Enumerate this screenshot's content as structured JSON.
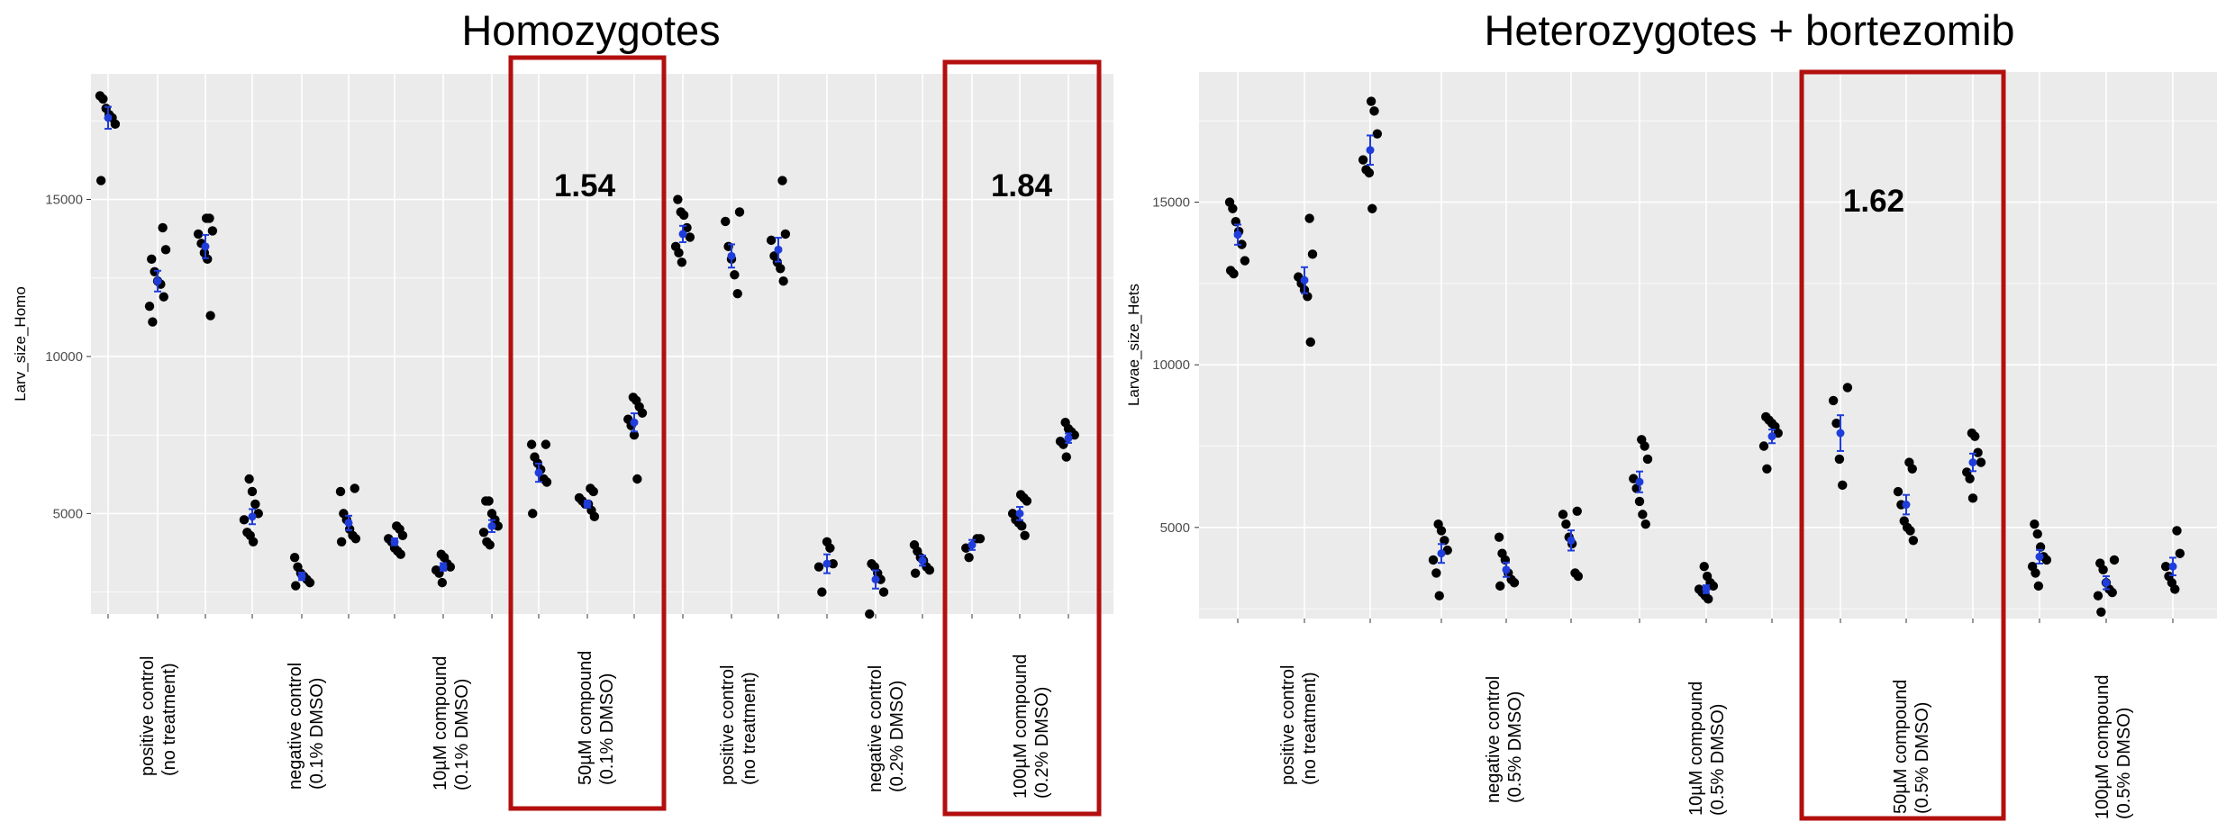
{
  "chart_data": [
    {
      "type": "scatter",
      "title": "Homozygotes",
      "ylabel": "Larv_size_Homo",
      "xlabel": "",
      "ylim": [
        1800,
        19000
      ],
      "yticks": [
        5000,
        10000,
        15000
      ],
      "grid": true,
      "legend": "none",
      "point_color": "#000000",
      "mean_color": "#1f3ddb",
      "highlight_color": "#b30f0f",
      "category_labels": [
        {
          "line1": "positive control",
          "line2": "(no treatment)"
        },
        {
          "line1": "negative control",
          "line2": "(0.1% DMSO)"
        },
        {
          "line1": "10µM compound",
          "line2": "(0.1% DMSO)"
        },
        {
          "line1": "50µM compound",
          "line2": "(0.1% DMSO)"
        },
        {
          "line1": "positive control",
          "line2": "(no treatment)"
        },
        {
          "line1": "negative control",
          "line2": "(0.2% DMSO)"
        },
        {
          "line1": "100µM compound",
          "line2": "(0.2% DMSO)"
        }
      ],
      "annotations": [
        "1.54",
        "1.84"
      ],
      "series": [
        {
          "values": [
            18300,
            18200,
            17900,
            17700,
            17600,
            17400,
            15600
          ],
          "mean": 17600,
          "se": 350
        },
        {
          "values": [
            14100,
            13400,
            13100,
            12700,
            12400,
            12300,
            11900,
            11600,
            11100
          ],
          "mean": 12400,
          "se": 330
        },
        {
          "values": [
            14400,
            14400,
            14000,
            13900,
            13600,
            13300,
            13100,
            11300
          ],
          "mean": 13500,
          "se": 370
        },
        {
          "values": [
            6100,
            5700,
            5300,
            5000,
            4800,
            4400,
            4300,
            4100
          ],
          "mean": 4900,
          "se": 240
        },
        {
          "values": [
            3600,
            3300,
            3100,
            3000,
            2900,
            2800,
            2700
          ],
          "mean": 3000,
          "se": 120
        },
        {
          "values": [
            5800,
            5700,
            5000,
            4800,
            4500,
            4300,
            4200,
            4100
          ],
          "mean": 4700,
          "se": 230
        },
        {
          "values": [
            4600,
            4500,
            4300,
            4200,
            4100,
            3900,
            3800,
            3700
          ],
          "mean": 4100,
          "se": 110
        },
        {
          "values": [
            3700,
            3600,
            3400,
            3300,
            3200,
            3100,
            2800
          ],
          "mean": 3300,
          "se": 120
        },
        {
          "values": [
            5400,
            5400,
            5000,
            4800,
            4600,
            4400,
            4100,
            4000
          ],
          "mean": 4600,
          "se": 190
        },
        {
          "values": [
            7200,
            7200,
            6800,
            6600,
            6400,
            6100,
            6000,
            5000
          ],
          "mean": 6300,
          "se": 290
        },
        {
          "values": [
            5800,
            5700,
            5500,
            5400,
            5300,
            5300,
            5100,
            4900
          ],
          "mean": 5300,
          "se": 110
        },
        {
          "values": [
            8700,
            8600,
            8400,
            8200,
            8000,
            7800,
            7500,
            6100
          ],
          "mean": 7900,
          "se": 290
        },
        {
          "values": [
            15000,
            14600,
            14500,
            14100,
            13800,
            13500,
            13300,
            13000
          ],
          "mean": 13900,
          "se": 260
        },
        {
          "values": [
            14600,
            14300,
            13500,
            13100,
            12600,
            12000
          ],
          "mean": 13200,
          "se": 370
        },
        {
          "values": [
            15600,
            13900,
            13700,
            13200,
            13000,
            12800,
            12400
          ],
          "mean": 13400,
          "se": 380
        },
        {
          "values": [
            4100,
            3900,
            3400,
            3300,
            2500
          ],
          "mean": 3400,
          "se": 300
        },
        {
          "values": [
            3400,
            3300,
            3100,
            2900,
            2500,
            1800
          ],
          "mean": 2900,
          "se": 290
        },
        {
          "values": [
            4000,
            3800,
            3600,
            3500,
            3300,
            3200,
            3100
          ],
          "mean": 3500,
          "se": 160
        },
        {
          "values": [
            4200,
            4200,
            3900,
            3600
          ],
          "mean": 4000,
          "se": 160
        },
        {
          "values": [
            5600,
            5500,
            5400,
            5000,
            4800,
            4700,
            4600,
            4300
          ],
          "mean": 5000,
          "se": 210
        },
        {
          "values": [
            7900,
            7700,
            7600,
            7500,
            7300,
            7200,
            6800
          ],
          "mean": 7400,
          "se": 150
        }
      ]
    },
    {
      "type": "scatter",
      "title": "Heterozygotes + bortezomib",
      "ylabel": "Larvae_size_Hets",
      "xlabel": "",
      "ylim": [
        2200,
        19000
      ],
      "yticks": [
        5000,
        10000,
        15000
      ],
      "grid": true,
      "legend": "none",
      "point_color": "#000000",
      "mean_color": "#1f3ddb",
      "highlight_color": "#b30f0f",
      "category_labels": [
        {
          "line1": "positive control",
          "line2": "(no treatment)"
        },
        {
          "line1": "negative control",
          "line2": "(0.5% DMSO)"
        },
        {
          "line1": "10µM compound",
          "line2": "(0.5% DMSO)"
        },
        {
          "line1": "50µM compound",
          "line2": "(0.5% DMSO)"
        },
        {
          "line1": "100µM compound",
          "line2": "(0.5% DMSO)"
        }
      ],
      "annotations": [
        "1.62"
      ],
      "series": [
        {
          "values": [
            15000,
            14800,
            14400,
            14100,
            13700,
            13200,
            12900,
            12800
          ],
          "mean": 14000,
          "se": 310
        },
        {
          "values": [
            14500,
            13400,
            12700,
            12500,
            12300,
            12100,
            10700
          ],
          "mean": 12600,
          "se": 400
        },
        {
          "values": [
            18100,
            17800,
            17100,
            16300,
            16000,
            15900,
            14800
          ],
          "mean": 16600,
          "se": 450
        },
        {
          "values": [
            5100,
            4900,
            4600,
            4300,
            4000,
            3600,
            2900
          ],
          "mean": 4200,
          "se": 290
        },
        {
          "values": [
            4700,
            4200,
            4000,
            3600,
            3400,
            3300,
            3200
          ],
          "mean": 3700,
          "se": 220
        },
        {
          "values": [
            5500,
            5400,
            5100,
            4700,
            4500,
            3600,
            3500
          ],
          "mean": 4600,
          "se": 310
        },
        {
          "values": [
            7700,
            7500,
            7100,
            6500,
            6200,
            5800,
            5400,
            5100
          ],
          "mean": 6400,
          "se": 320
        },
        {
          "values": [
            3800,
            3500,
            3300,
            3200,
            3100,
            3000,
            2900,
            2800
          ],
          "mean": 3100,
          "se": 120
        },
        {
          "values": [
            8400,
            8300,
            8200,
            8100,
            7900,
            7500,
            6800
          ],
          "mean": 7800,
          "se": 210
        },
        {
          "values": [
            9300,
            8900,
            8200,
            7100,
            6300
          ],
          "mean": 7900,
          "se": 550
        },
        {
          "values": [
            7000,
            6800,
            6100,
            5700,
            5200,
            5000,
            4900,
            4600
          ],
          "mean": 5700,
          "se": 300
        },
        {
          "values": [
            7900,
            7800,
            7300,
            7000,
            6700,
            6500,
            5900
          ],
          "mean": 7000,
          "se": 270
        },
        {
          "values": [
            5100,
            4800,
            4400,
            4100,
            4000,
            3800,
            3600,
            3200
          ],
          "mean": 4100,
          "se": 210
        },
        {
          "values": [
            4000,
            3900,
            3700,
            3300,
            3100,
            3000,
            2900,
            2400
          ],
          "mean": 3300,
          "se": 200
        },
        {
          "values": [
            4900,
            4200,
            3800,
            3500,
            3300,
            3100
          ],
          "mean": 3800,
          "se": 270
        }
      ]
    }
  ]
}
